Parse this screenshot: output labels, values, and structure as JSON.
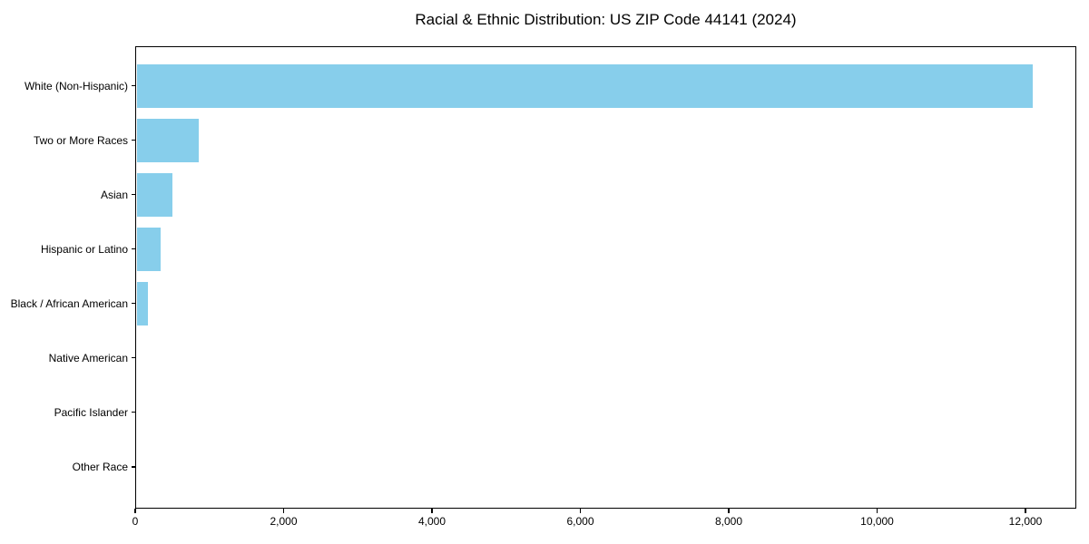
{
  "chart_data": {
    "type": "bar",
    "orientation": "horizontal",
    "title": "Racial & Ethnic Distribution: US ZIP Code 44141 (2024)",
    "categories": [
      "White (Non-Hispanic)",
      "Two or More Races",
      "Asian",
      "Hispanic or Latino",
      "Black / African American",
      "Native American",
      "Pacific Islander",
      "Other Race"
    ],
    "values": [
      12080,
      835,
      480,
      320,
      150,
      0,
      0,
      0
    ],
    "xlabel": "",
    "ylabel": "",
    "xlim": [
      0,
      12685
    ],
    "xticks": [
      0,
      2000,
      4000,
      6000,
      8000,
      10000,
      12000
    ],
    "xtick_labels": [
      "0",
      "2,000",
      "4,000",
      "6,000",
      "8,000",
      "10,000",
      "12,000"
    ],
    "bar_color": "#87CEEB",
    "axis_color": "#000000",
    "text_color": "#000000",
    "grid": false,
    "legend": null
  }
}
